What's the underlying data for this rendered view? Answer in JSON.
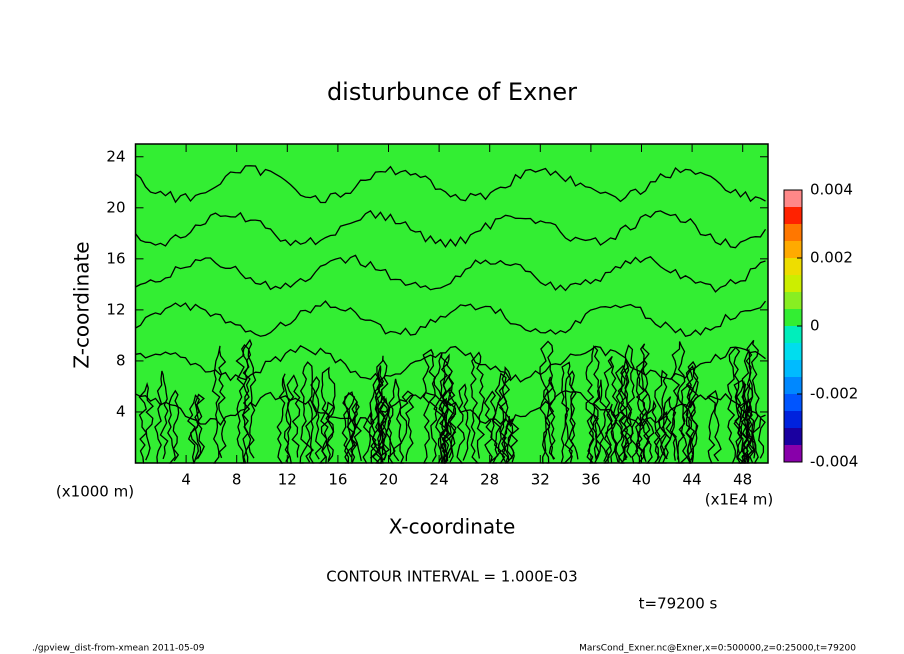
{
  "chart_data": {
    "type": "contour",
    "title": "disturbunce of Exner",
    "x_label": "X-coordinate",
    "y_label": "Z-coordinate",
    "x_unit": "(x1E4 m)",
    "y_unit": "(x1000 m)",
    "xlim": [
      0,
      50
    ],
    "xticks": [
      4,
      8,
      12,
      16,
      20,
      24,
      28,
      32,
      36,
      40,
      44,
      48
    ],
    "ylim": [
      0,
      25
    ],
    "yticks": [
      4,
      8,
      12,
      16,
      20,
      24
    ],
    "field_color": "#33ee33",
    "colorbar": {
      "lim": [
        -0.004,
        0.004
      ],
      "ticks": [
        -0.004,
        -0.002,
        0,
        0.002,
        0.004
      ],
      "step": 0.0005,
      "colors": [
        "#8800aa",
        "#1a00a0",
        "#0022dd",
        "#0055ff",
        "#0088ff",
        "#00bbff",
        "#00ddee",
        "#00eebb",
        "#33ee33",
        "#88ee22",
        "#ccee00",
        "#eedd00",
        "#ffaa00",
        "#ff7700",
        "#ff2200",
        "#ff8888"
      ]
    },
    "contour_interval": "CONTOUR INTERVAL = 1.000E-03",
    "time_label": "t=79200 s",
    "footer_left": "./gpview_dist-from-xmean  2011-05-09",
    "footer_right": "MarsCond_Exner.nc@Exner,x=0:500000,z=0:25000,t=79200"
  }
}
